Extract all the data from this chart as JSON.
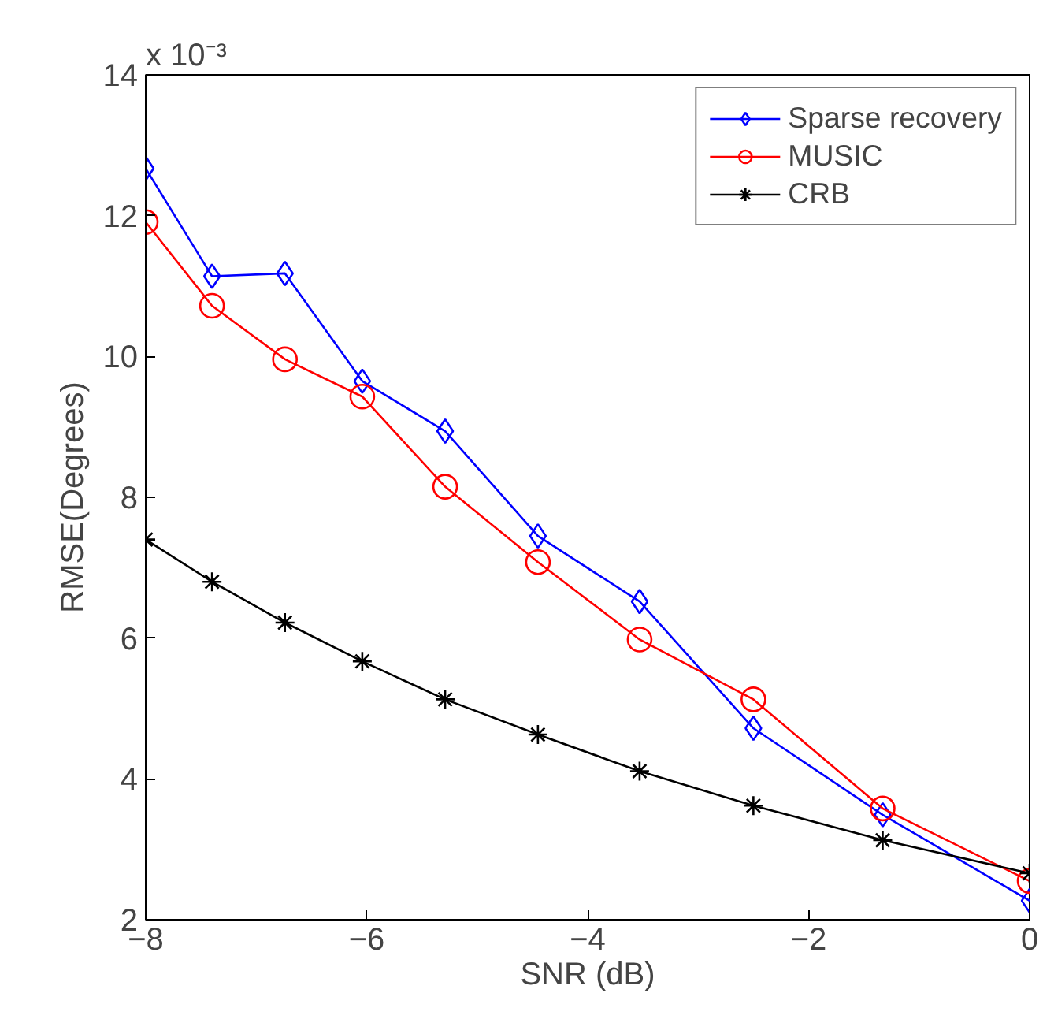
{
  "chart_data": {
    "type": "line",
    "xlabel": "SNR (dB)",
    "ylabel": "RMSE(Degrees)",
    "annotations": [
      "x 10⁻³"
    ],
    "x": [
      -8,
      -7.4,
      -6.74,
      -6.04,
      -5.29,
      -4.45,
      -3.53,
      -2.5,
      -1.33,
      0
    ],
    "series": [
      {
        "name": "Sparse recovery",
        "color": "#0000ff",
        "marker": "diamond",
        "values": [
          12.67,
          11.14,
          11.18,
          9.65,
          8.94,
          7.45,
          6.52,
          4.72,
          3.49,
          2.27
        ]
      },
      {
        "name": "MUSIC",
        "color": "#ff0000",
        "marker": "circle",
        "values": [
          11.91,
          10.72,
          9.96,
          9.43,
          8.15,
          7.08,
          5.98,
          5.13,
          3.58,
          2.55
        ]
      },
      {
        "name": "CRB",
        "color": "#000000",
        "marker": "cross",
        "values": [
          7.4,
          6.8,
          6.22,
          5.67,
          5.13,
          4.63,
          4.11,
          3.62,
          3.13,
          2.66
        ]
      }
    ],
    "xlim": [
      -8,
      0
    ],
    "xticks": [
      {
        "value": -8,
        "label": "−8"
      },
      {
        "value": -6,
        "label": "−6"
      },
      {
        "value": -4,
        "label": "−4"
      },
      {
        "value": -2,
        "label": "−2"
      },
      0
    ],
    "ylim": [
      2,
      14
    ],
    "yticks": [
      2,
      4,
      6,
      8,
      10,
      12,
      14
    ],
    "grid": false,
    "legend": "top right",
    "line_style": "solid"
  }
}
